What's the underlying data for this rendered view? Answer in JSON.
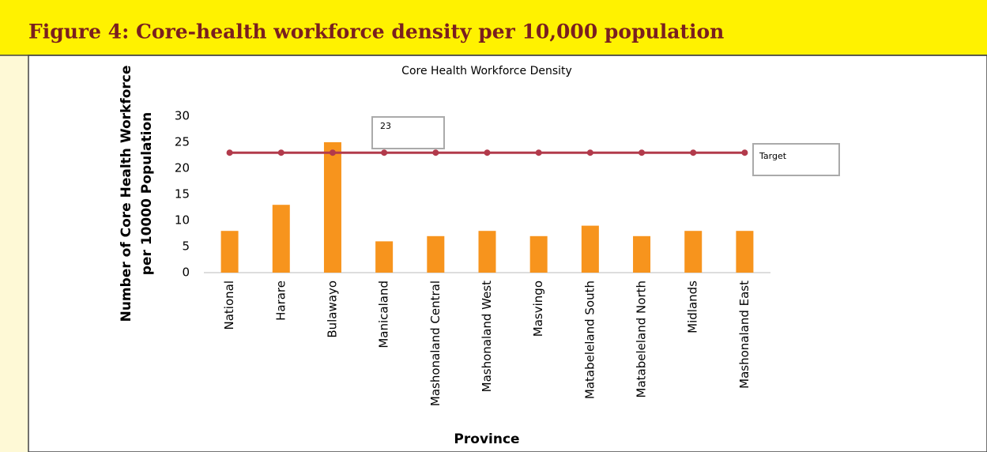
{
  "header": {
    "title": "Figure 4: Core-health workforce density per 10,000 population"
  },
  "chart_data": {
    "type": "bar",
    "title": "Core Health Workforce Density",
    "ylabel": [
      "Number of Core Health Workforce",
      "per 10000 Population"
    ],
    "xlabel": "Province",
    "categories": [
      "National",
      "Harare",
      "Bulawayo",
      "Manicaland",
      "Mashonaland Central",
      "Mashonaland West",
      "Masvingo",
      "Matabeleland South",
      "Matabeleland North",
      "Midlands",
      "Mashonaland East"
    ],
    "series": [
      {
        "type": "bar",
        "color": "#f7941d",
        "values": [
          8,
          13,
          25,
          6,
          7,
          8,
          7,
          9,
          7,
          8,
          8
        ]
      },
      {
        "type": "line",
        "name": "Target",
        "color": "#b23a4b",
        "values": [
          23,
          23,
          23,
          23,
          23,
          23,
          23,
          23,
          23,
          23,
          23
        ]
      }
    ],
    "ylim": [
      0,
      30
    ],
    "yticks": [
      0,
      5,
      10,
      15,
      20,
      25,
      30
    ],
    "grid": false
  }
}
